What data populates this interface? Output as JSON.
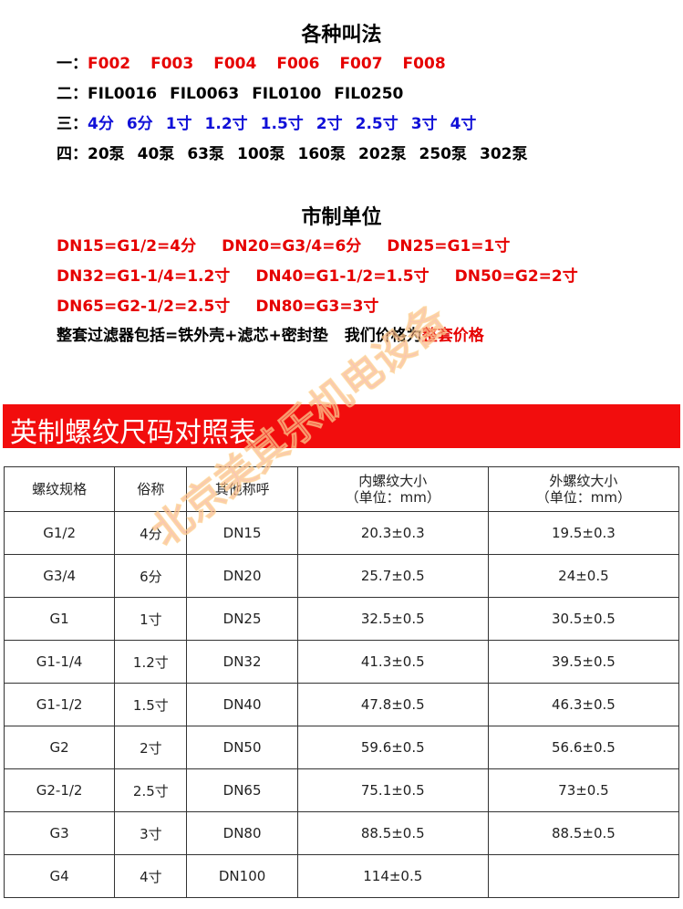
{
  "names_section": {
    "title": "各种叫法",
    "rows": [
      {
        "prefix": "一：",
        "color": "red",
        "items": [
          "F002",
          "F003",
          "F004",
          "F006",
          "F007",
          "F008"
        ]
      },
      {
        "prefix": "二：",
        "color": "blk",
        "items": [
          "FIL0016",
          "FIL0063",
          "FIL0100",
          "FIL0250"
        ]
      },
      {
        "prefix": "三：",
        "color": "blue",
        "items": [
          "4分",
          "6分",
          "1寸",
          "1.2寸",
          "1.5寸",
          "2寸",
          "2.5寸",
          "3寸",
          "4寸"
        ]
      },
      {
        "prefix": "四：",
        "color": "blk",
        "items": [
          "20泵",
          "40泵",
          "63泵",
          "100泵",
          "160泵",
          "202泵",
          "250泵",
          "302泵"
        ]
      }
    ]
  },
  "metric_section": {
    "title": "市制单位",
    "rows": [
      [
        "DN15=G1/2=4分",
        "DN20=G3/4=6分",
        "DN25=G1=1寸"
      ],
      [
        "DN32=G1-1/4=1.2寸",
        "DN40=G1-1/2=1.5寸",
        "DN50=G2=2寸"
      ],
      [
        "DN65=G2-1/2=2.5寸",
        "DN80=G3=3寸"
      ]
    ],
    "note": "整套过滤器包括=铁外壳+滤芯+密封垫",
    "price_note": "我们价格为",
    "price_highlight": "整套价格"
  },
  "table_title": "英制螺纹尺码对照表",
  "watermark": "北京美其乐机电设备",
  "table": {
    "headers": [
      "螺纹规格",
      "俗称",
      "其他称呼",
      "内螺纹大小\n（单位：mm）",
      "外螺纹大小\n（单位：mm）"
    ],
    "rows": [
      [
        "G1/2",
        "4分",
        "DN15",
        "20.3±0.3",
        "19.5±0.3"
      ],
      [
        "G3/4",
        "6分",
        "DN20",
        "25.7±0.5",
        "24±0.5"
      ],
      [
        "G1",
        "1寸",
        "DN25",
        "32.5±0.5",
        "30.5±0.5"
      ],
      [
        "G1-1/4",
        "1.2寸",
        "DN32",
        "41.3±0.5",
        "39.5±0.5"
      ],
      [
        "G1-1/2",
        "1.5寸",
        "DN40",
        "47.8±0.5",
        "46.3±0.5"
      ],
      [
        "G2",
        "2寸",
        "DN50",
        "59.6±0.5",
        "56.6±0.5"
      ],
      [
        "G2-1/2",
        "2.5寸",
        "DN65",
        "75.1±0.5",
        "73±0.5"
      ],
      [
        "G3",
        "3寸",
        "DN80",
        "88.5±0.5",
        "88.5±0.5"
      ],
      [
        "G4",
        "4寸",
        "DN100",
        "114±0.5",
        ""
      ]
    ]
  }
}
